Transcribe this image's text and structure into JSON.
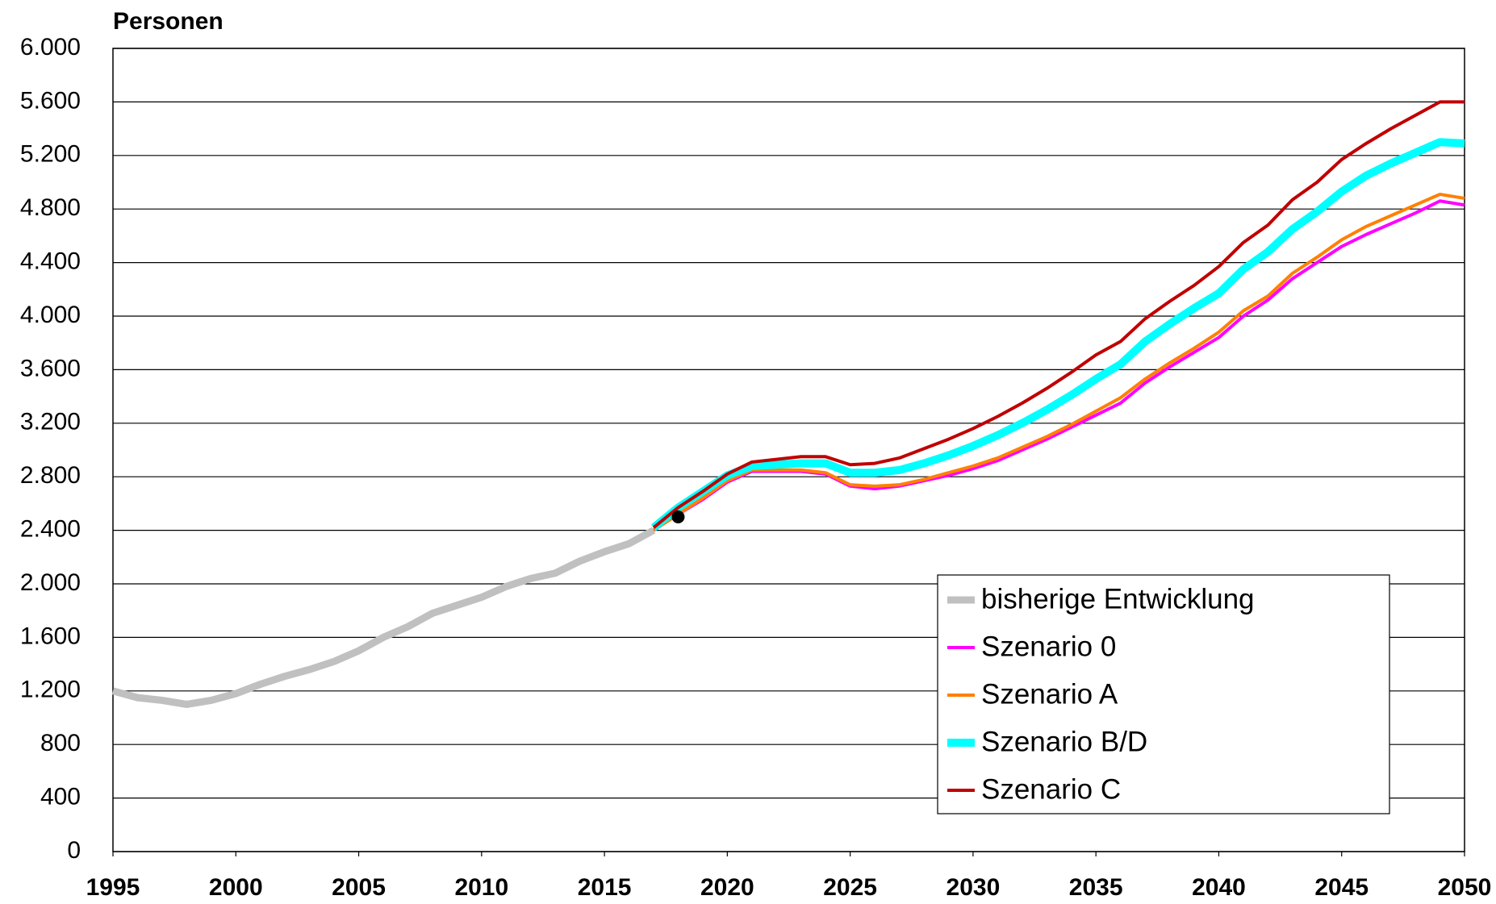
{
  "chart_data": {
    "type": "line",
    "y_label": "Personen",
    "xlim": [
      1995,
      2050
    ],
    "xticks": [
      1995,
      2000,
      2005,
      2010,
      2015,
      2020,
      2025,
      2030,
      2035,
      2040,
      2045,
      2050
    ],
    "ylim": [
      0,
      6000
    ],
    "yticks": [
      0,
      400,
      800,
      {
        "value": 1200,
        "label": "1.200"
      },
      {
        "value": 1600,
        "label": "1.600"
      },
      {
        "value": 2000,
        "label": "2.000"
      },
      {
        "value": 2400,
        "label": "2.400"
      },
      {
        "value": 2800,
        "label": "2.800"
      },
      {
        "value": 3200,
        "label": "3.200"
      },
      {
        "value": 3600,
        "label": "3.600"
      },
      {
        "value": 4000,
        "label": "4.000"
      },
      {
        "value": 4400,
        "label": "4.400"
      },
      {
        "value": 4800,
        "label": "4.800"
      },
      {
        "value": 5200,
        "label": "5.200"
      },
      {
        "value": 5600,
        "label": "5.600"
      },
      {
        "value": 6000,
        "label": "6.000"
      }
    ],
    "grid": true,
    "legend": "lower right",
    "series": [
      {
        "name": "bisherige Entwicklung",
        "color": "#c0c0c0",
        "width": 9,
        "x": [
          1995,
          1996,
          1997,
          1998,
          1999,
          2000,
          2001,
          2002,
          2003,
          2004,
          2005,
          2006,
          2007,
          2008,
          2009,
          2010,
          2011,
          2012,
          2013,
          2014,
          2015,
          2016,
          2017
        ],
        "values": [
          1200,
          1150,
          1130,
          1100,
          1130,
          1180,
          1250,
          1310,
          1360,
          1420,
          1500,
          1600,
          1680,
          1780,
          1840,
          1900,
          1980,
          2040,
          2080,
          2170,
          2240,
          2300,
          2400
        ]
      },
      {
        "name": "Szenario 0",
        "color": "#ff00ff",
        "width": 4,
        "x": [
          2017,
          2018,
          2019,
          2020,
          2021,
          2022,
          2023,
          2024,
          2025,
          2026,
          2027,
          2028,
          2029,
          2030,
          2031,
          2032,
          2033,
          2034,
          2035,
          2036,
          2037,
          2038,
          2039,
          2040,
          2041,
          2042,
          2043,
          2044,
          2045,
          2046,
          2047,
          2048,
          2049,
          2050
        ],
        "values": [
          2400,
          2520,
          2630,
          2760,
          2840,
          2840,
          2840,
          2820,
          2730,
          2710,
          2730,
          2770,
          2810,
          2860,
          2920,
          3000,
          3080,
          3170,
          3260,
          3350,
          3500,
          3620,
          3730,
          3840,
          4000,
          4120,
          4280,
          4400,
          4520,
          4610,
          4690,
          4770,
          4860,
          4830
        ]
      },
      {
        "name": "Szenario A",
        "color": "#ff8000",
        "width": 4,
        "x": [
          2017,
          2018,
          2019,
          2020,
          2021,
          2022,
          2023,
          2024,
          2025,
          2026,
          2027,
          2028,
          2029,
          2030,
          2031,
          2032,
          2033,
          2034,
          2035,
          2036,
          2037,
          2038,
          2039,
          2040,
          2041,
          2042,
          2043,
          2044,
          2045,
          2046,
          2047,
          2048,
          2049,
          2050
        ],
        "values": [
          2400,
          2520,
          2640,
          2770,
          2850,
          2850,
          2850,
          2830,
          2740,
          2730,
          2740,
          2780,
          2830,
          2880,
          2940,
          3020,
          3100,
          3190,
          3290,
          3390,
          3530,
          3650,
          3760,
          3880,
          4040,
          4150,
          4320,
          4440,
          4570,
          4670,
          4750,
          4830,
          4910,
          4880
        ]
      },
      {
        "name": "Szenario B/D",
        "color": "#00ffff",
        "width": 10,
        "x": [
          2017,
          2018,
          2019,
          2020,
          2021,
          2022,
          2023,
          2024,
          2025,
          2026,
          2027,
          2028,
          2029,
          2030,
          2031,
          2032,
          2033,
          2034,
          2035,
          2036,
          2037,
          2038,
          2039,
          2040,
          2041,
          2042,
          2043,
          2044,
          2045,
          2046,
          2047,
          2048,
          2049,
          2050
        ],
        "values": [
          2420,
          2570,
          2690,
          2810,
          2880,
          2890,
          2900,
          2900,
          2830,
          2830,
          2850,
          2900,
          2960,
          3030,
          3110,
          3200,
          3300,
          3410,
          3530,
          3640,
          3810,
          3940,
          4060,
          4170,
          4350,
          4480,
          4650,
          4780,
          4930,
          5050,
          5140,
          5220,
          5300,
          5290
        ]
      },
      {
        "name": "Szenario C",
        "color": "#c00000",
        "width": 4,
        "x": [
          2017,
          2018,
          2019,
          2020,
          2021,
          2022,
          2023,
          2024,
          2025,
          2026,
          2027,
          2028,
          2029,
          2030,
          2031,
          2032,
          2033,
          2034,
          2035,
          2036,
          2037,
          2038,
          2039,
          2040,
          2041,
          2042,
          2043,
          2044,
          2045,
          2046,
          2047,
          2048,
          2049,
          2050
        ],
        "values": [
          2420,
          2570,
          2690,
          2820,
          2910,
          2930,
          2950,
          2950,
          2890,
          2900,
          2940,
          3010,
          3080,
          3160,
          3250,
          3350,
          3460,
          3580,
          3710,
          3810,
          3980,
          4110,
          4230,
          4370,
          4550,
          4680,
          4870,
          5000,
          5170,
          5290,
          5400,
          5500,
          5600,
          5600
        ]
      }
    ],
    "points": [
      {
        "x": 2018,
        "y": 2500,
        "color": "#000000"
      }
    ]
  }
}
